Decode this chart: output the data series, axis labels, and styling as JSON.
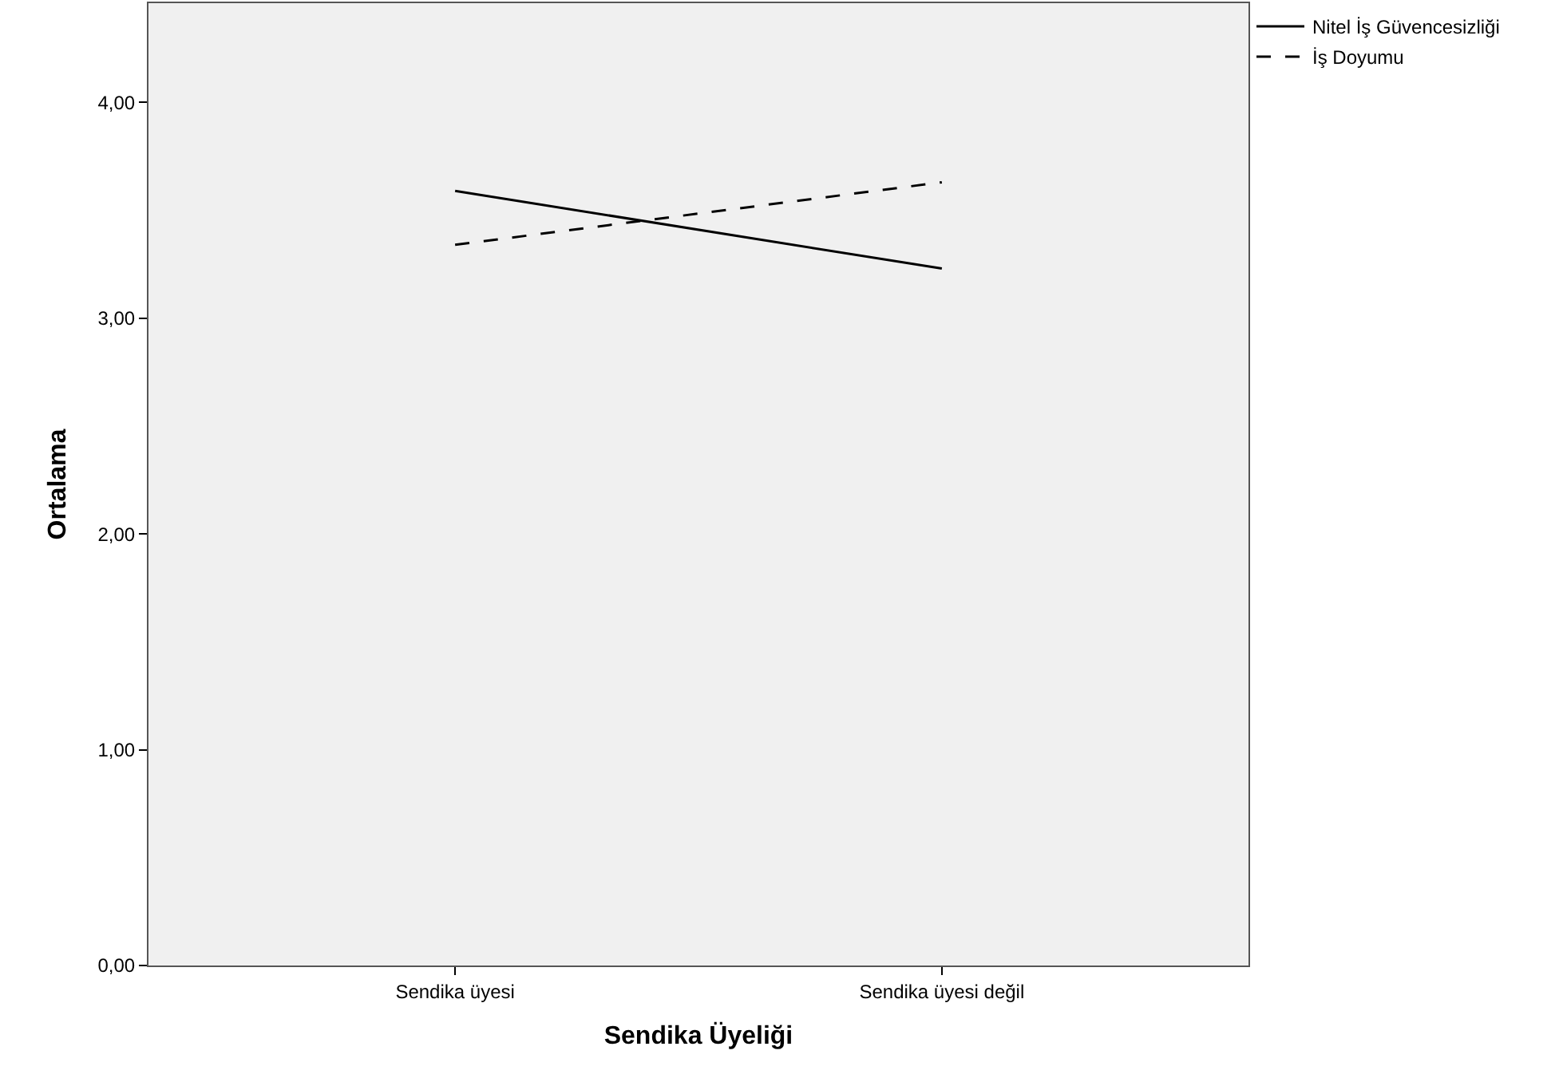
{
  "chart_data": {
    "type": "line",
    "xlabel": "Sendika Üyeliği",
    "ylabel": "Ortalama",
    "categories": [
      "Sendika üyesi",
      "Sendika üyesi değil"
    ],
    "series": [
      {
        "name": "Nitel İş Güvencesizliği",
        "color": "#000000",
        "values": [
          3.59,
          3.23
        ],
        "line_style": "solid"
      },
      {
        "name": "İş Doyumu",
        "color": "#000000",
        "values": [
          3.34,
          3.63
        ],
        "line_style": "dashed"
      }
    ],
    "ylim": [
      0,
      4.46
    ],
    "yticks": [
      {
        "value": 0,
        "label": "0,00"
      },
      {
        "value": 1,
        "label": "1,00"
      },
      {
        "value": 2,
        "label": "2,00"
      },
      {
        "value": 3,
        "label": "3,00"
      },
      {
        "value": 4,
        "label": "4,00"
      }
    ],
    "grid": false,
    "legend": "top right",
    "marker": "none"
  }
}
